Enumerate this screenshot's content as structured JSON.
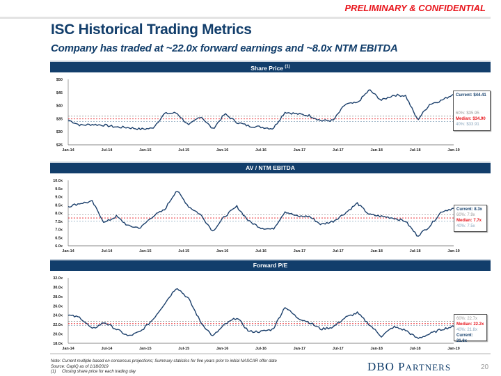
{
  "header": {
    "confidential": "PRELIMINARY & CONFIDENTIAL",
    "title": "ISC Historical Trading Metrics",
    "subtitle": "Company has traded at ~22.0x forward earnings and ~8.0x NTM EBITDA"
  },
  "colors": {
    "navy": "#123e6b",
    "red": "#e8141b",
    "line": "#1b3f6b",
    "p60": "#999999",
    "p40": "#8aa6bd"
  },
  "x_ticks": [
    "Jan-14",
    "Jul-14",
    "Jan-15",
    "Jul-15",
    "Jan-16",
    "Jul-16",
    "Jan-17",
    "Jul-17",
    "Jan-18",
    "Jul-18",
    "Jan-19"
  ],
  "chart_data": [
    {
      "type": "line",
      "title": "Share Price",
      "title_note": "(1)",
      "ylim": [
        25,
        50
      ],
      "yticks": [
        "$25",
        "$30",
        "$35",
        "$40",
        "$45",
        "$50"
      ],
      "ytick_values": [
        25,
        30,
        35,
        40,
        45,
        50
      ],
      "x": [
        "Jan-14",
        "Mar-14",
        "May-14",
        "Jul-14",
        "Sep-14",
        "Nov-14",
        "Jan-15",
        "Mar-15",
        "May-15",
        "Jul-15",
        "Sep-15",
        "Nov-15",
        "Jan-16",
        "Mar-16",
        "May-16",
        "Jul-16",
        "Sep-16",
        "Nov-16",
        "Jan-17",
        "Mar-17",
        "May-17",
        "Jul-17",
        "Sep-17",
        "Nov-17",
        "Jan-18",
        "Mar-18",
        "May-18",
        "Jul-18",
        "Sep-18",
        "Oct-18",
        "Nov-18",
        "Dec-18",
        "Jan-19"
      ],
      "series": [
        {
          "name": "Share Price",
          "values": [
            34.5,
            32.5,
            32.8,
            32.5,
            31.8,
            31.6,
            31.0,
            31.3,
            36.9,
            37.2,
            32.4,
            36.0,
            31.0,
            36.8,
            33.6,
            32.2,
            31.8,
            31.2,
            37.5,
            36.8,
            36.2,
            34.2,
            34.3,
            40.5,
            41.0,
            46.0,
            42.0,
            44.0,
            43.8,
            34.5,
            40.5,
            42.0,
            44.4
          ]
        }
      ],
      "reference_lines": {
        "p60": 35.95,
        "median": 34.9,
        "p40": 33.91
      },
      "stats": {
        "current": "Current: $44.41",
        "p60": "60%: $35.95",
        "median": "Median: $34.90",
        "p40": "40%: $33.91"
      }
    },
    {
      "type": "line",
      "title": "AV / NTM EBITDA",
      "ylim": [
        6.0,
        10.0
      ],
      "yticks": [
        "6.0x",
        "6.5x",
        "7.0x",
        "7.5x",
        "8.0x",
        "8.5x",
        "9.0x",
        "9.5x",
        "10.0x"
      ],
      "ytick_values": [
        6.0,
        6.5,
        7.0,
        7.5,
        8.0,
        8.5,
        9.0,
        9.5,
        10.0
      ],
      "x": [
        "Jan-14",
        "Mar-14",
        "May-14",
        "Jul-14",
        "Sep-14",
        "Nov-14",
        "Jan-15",
        "Mar-15",
        "May-15",
        "Jul-15",
        "Sep-15",
        "Nov-15",
        "Jan-16",
        "Mar-16",
        "May-16",
        "Jul-16",
        "Sep-16",
        "Nov-16",
        "Jan-17",
        "Mar-17",
        "May-17",
        "Jul-17",
        "Sep-17",
        "Nov-17",
        "Jan-18",
        "Mar-18",
        "May-18",
        "Jul-18",
        "Sep-18",
        "Oct-18",
        "Nov-18",
        "Dec-18",
        "Jan-19"
      ],
      "series": [
        {
          "name": "AV / NTM EBITDA",
          "values": [
            8.4,
            8.6,
            8.7,
            7.4,
            7.8,
            7.2,
            7.1,
            7.8,
            8.2,
            9.4,
            8.4,
            7.9,
            6.9,
            7.8,
            8.4,
            7.5,
            7.1,
            7.0,
            8.1,
            7.8,
            7.8,
            7.3,
            7.5,
            8.0,
            8.6,
            7.9,
            7.8,
            7.7,
            7.5,
            6.6,
            7.2,
            8.1,
            8.3
          ]
        }
      ],
      "reference_lines": {
        "p60": 7.9,
        "median": 7.7,
        "p40": 7.5
      },
      "stats": {
        "current": "Current: 8.3x",
        "p60": "60%: 7.9x",
        "median": "Median: 7.7x",
        "p40": "40%: 7.5x"
      }
    },
    {
      "type": "line",
      "title": "Forward P/E",
      "ylim": [
        18.0,
        32.0
      ],
      "yticks": [
        "18.0x",
        "20.0x",
        "22.0x",
        "24.0x",
        "26.0x",
        "28.0x",
        "30.0x",
        "32.0x"
      ],
      "ytick_values": [
        18,
        20,
        22,
        24,
        26,
        28,
        30,
        32
      ],
      "x": [
        "Jan-14",
        "Mar-14",
        "May-14",
        "Jul-14",
        "Sep-14",
        "Nov-14",
        "Jan-15",
        "Mar-15",
        "May-15",
        "Jul-15",
        "Sep-15",
        "Nov-15",
        "Jan-16",
        "Mar-16",
        "May-16",
        "Jul-16",
        "Sep-16",
        "Nov-16",
        "Jan-17",
        "Mar-17",
        "May-17",
        "Jul-17",
        "Sep-17",
        "Nov-17",
        "Jan-18",
        "Mar-18",
        "May-18",
        "Jul-18",
        "Sep-18",
        "Oct-18",
        "Nov-18",
        "Dec-18",
        "Jan-19"
      ],
      "series": [
        {
          "name": "Forward P/E",
          "values": [
            24.0,
            23.5,
            21.0,
            22.5,
            21.0,
            19.5,
            20.5,
            23.0,
            26.5,
            30.0,
            27.5,
            22.5,
            19.5,
            22.0,
            23.5,
            20.5,
            20.5,
            21.0,
            25.8,
            23.5,
            22.5,
            21.0,
            21.5,
            23.5,
            24.5,
            22.0,
            19.5,
            21.5,
            20.8,
            19.0,
            20.0,
            21.0,
            21.6
          ]
        }
      ],
      "reference_lines": {
        "p60": 22.7,
        "median": 22.2,
        "p40": 21.8
      },
      "stats": {
        "p60": "60%: 22.7x",
        "median": "Median: 22.2x",
        "p40": "40%: 21.8x",
        "current": "Current: 21.6x"
      }
    }
  ],
  "footer": {
    "note": "Note: Current multiple based on consensus projections; Summary statistics for five years prior to initial NASCAR offer date",
    "source": "Source: CapIQ as of 1/18/2019",
    "fn_num": "(1)",
    "fn_text": "Closing share price for each trading day",
    "logo_big1": "D",
    "logo_big2": "B",
    "logo_big3": "O",
    "logo_p": "P",
    "logo_rest": "ARTNERS",
    "page": "20"
  }
}
